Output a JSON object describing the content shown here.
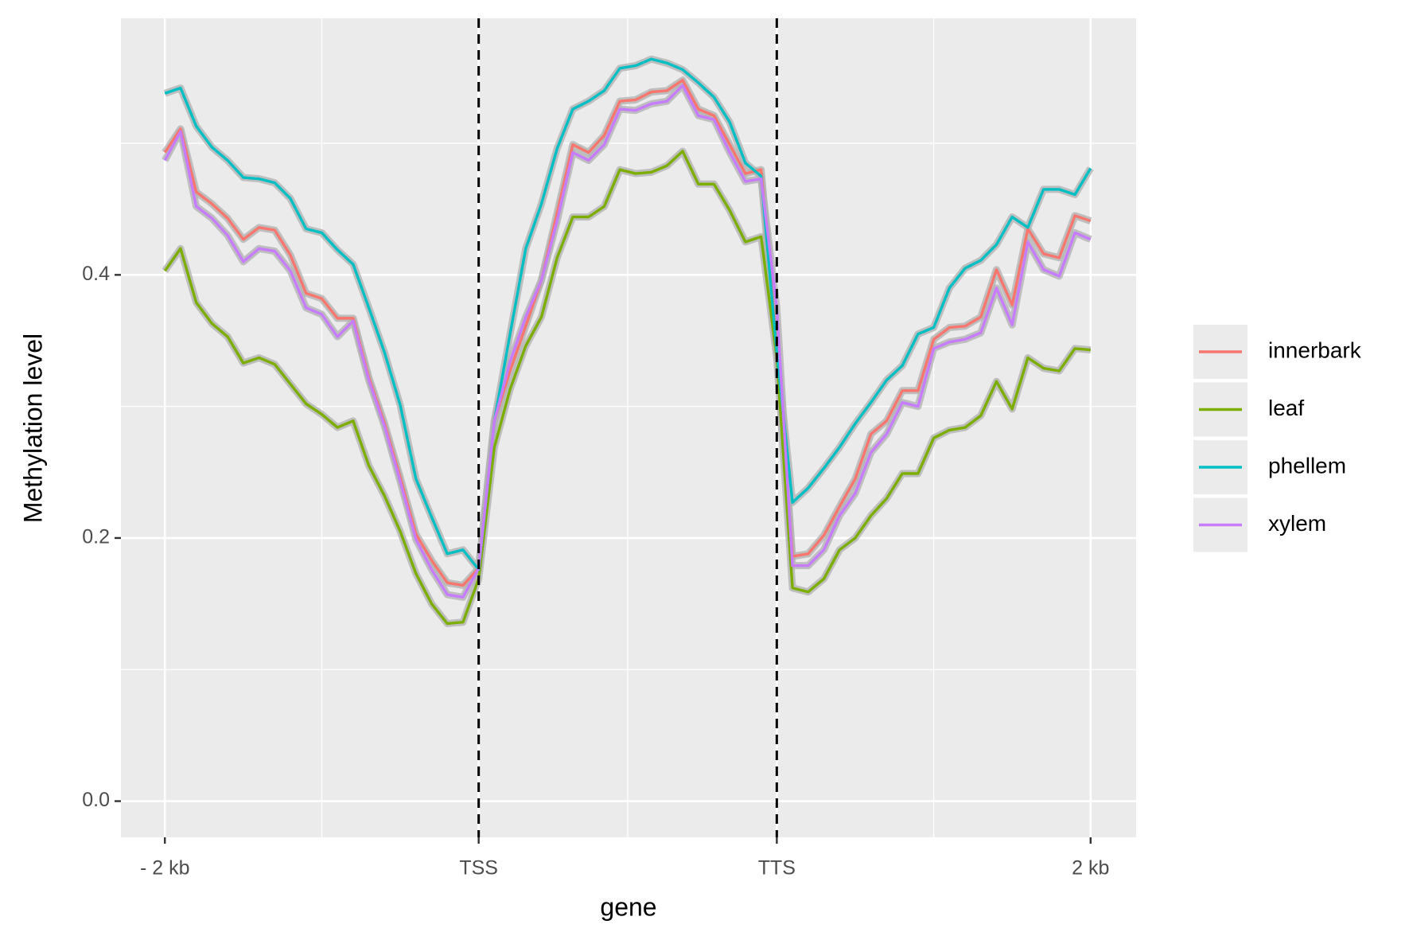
{
  "chart_data": {
    "type": "line",
    "xlabel": "gene",
    "ylabel": "Methylation level",
    "x": [
      0,
      1,
      2,
      3,
      4,
      5,
      6,
      7,
      8,
      9,
      10,
      11,
      12,
      13,
      14,
      15,
      16,
      17,
      18,
      19,
      20,
      21,
      22,
      23,
      24,
      25,
      26,
      27,
      28,
      29,
      30,
      31,
      32,
      33,
      34,
      35,
      36,
      37,
      38,
      39,
      40,
      41,
      42,
      43,
      44,
      45,
      46,
      47,
      48,
      49,
      50,
      51,
      52,
      53,
      54,
      55,
      56,
      57,
      58,
      59
    ],
    "series": [
      {
        "name": "innerbark",
        "color": "#F8766D",
        "values": [
          0.493,
          0.511,
          0.463,
          0.454,
          0.443,
          0.427,
          0.436,
          0.434,
          0.415,
          0.386,
          0.382,
          0.367,
          0.367,
          0.322,
          0.287,
          0.246,
          0.203,
          0.183,
          0.166,
          0.164,
          0.177,
          0.289,
          0.327,
          0.361,
          0.396,
          0.447,
          0.499,
          0.493,
          0.506,
          0.532,
          0.533,
          0.539,
          0.54,
          0.548,
          0.526,
          0.521,
          0.499,
          0.477,
          0.48,
          0.345,
          0.186,
          0.188,
          0.202,
          0.224,
          0.245,
          0.279,
          0.289,
          0.312,
          0.312,
          0.351,
          0.36,
          0.361,
          0.368,
          0.404,
          0.377,
          0.435,
          0.416,
          0.413,
          0.445,
          0.441
        ]
      },
      {
        "name": "leaf",
        "color": "#7CAE00",
        "values": [
          0.403,
          0.42,
          0.379,
          0.363,
          0.353,
          0.333,
          0.337,
          0.332,
          0.317,
          0.302,
          0.294,
          0.284,
          0.289,
          0.255,
          0.232,
          0.205,
          0.173,
          0.15,
          0.135,
          0.136,
          0.169,
          0.269,
          0.313,
          0.346,
          0.368,
          0.413,
          0.444,
          0.444,
          0.452,
          0.48,
          0.477,
          0.478,
          0.483,
          0.494,
          0.469,
          0.469,
          0.449,
          0.425,
          0.429,
          0.337,
          0.162,
          0.159,
          0.169,
          0.191,
          0.2,
          0.217,
          0.23,
          0.249,
          0.249,
          0.276,
          0.282,
          0.284,
          0.293,
          0.319,
          0.298,
          0.337,
          0.329,
          0.327,
          0.344,
          0.343
        ]
      },
      {
        "name": "phellem",
        "color": "#00BFC4",
        "values": [
          0.538,
          0.542,
          0.513,
          0.497,
          0.487,
          0.474,
          0.473,
          0.47,
          0.458,
          0.435,
          0.432,
          0.419,
          0.408,
          0.375,
          0.341,
          0.301,
          0.245,
          0.216,
          0.188,
          0.191,
          0.176,
          0.289,
          0.355,
          0.42,
          0.454,
          0.496,
          0.526,
          0.532,
          0.54,
          0.557,
          0.559,
          0.564,
          0.561,
          0.556,
          0.546,
          0.535,
          0.516,
          0.485,
          0.475,
          0.341,
          0.227,
          0.238,
          0.253,
          0.269,
          0.287,
          0.303,
          0.32,
          0.331,
          0.355,
          0.36,
          0.39,
          0.405,
          0.411,
          0.423,
          0.444,
          0.436,
          0.465,
          0.465,
          0.461,
          0.481
        ]
      },
      {
        "name": "xylem",
        "color": "#C77CFF",
        "values": [
          0.487,
          0.509,
          0.452,
          0.443,
          0.43,
          0.41,
          0.42,
          0.418,
          0.403,
          0.375,
          0.37,
          0.353,
          0.365,
          0.32,
          0.285,
          0.243,
          0.199,
          0.176,
          0.157,
          0.155,
          0.177,
          0.289,
          0.334,
          0.368,
          0.396,
          0.441,
          0.493,
          0.487,
          0.499,
          0.526,
          0.525,
          0.53,
          0.532,
          0.544,
          0.521,
          0.518,
          0.493,
          0.471,
          0.473,
          0.375,
          0.179,
          0.179,
          0.191,
          0.217,
          0.234,
          0.265,
          0.279,
          0.303,
          0.3,
          0.344,
          0.349,
          0.351,
          0.356,
          0.39,
          0.362,
          0.425,
          0.404,
          0.399,
          0.432,
          0.427
        ]
      }
    ],
    "xlim": [
      -2.8,
      61.9
    ],
    "xticks": [
      {
        "value": 0,
        "label": "- 2 kb"
      },
      {
        "value": 20,
        "label": "TSS"
      },
      {
        "value": 39,
        "label": "TTS"
      },
      {
        "value": 59,
        "label": "2 kb"
      }
    ],
    "ylim": [
      -0.0275,
      0.595
    ],
    "yticks": [
      {
        "value": 0,
        "label": "0.0"
      },
      0.2,
      0.4
    ],
    "vlines": [
      20,
      39
    ],
    "grid": true,
    "legend": "right"
  }
}
